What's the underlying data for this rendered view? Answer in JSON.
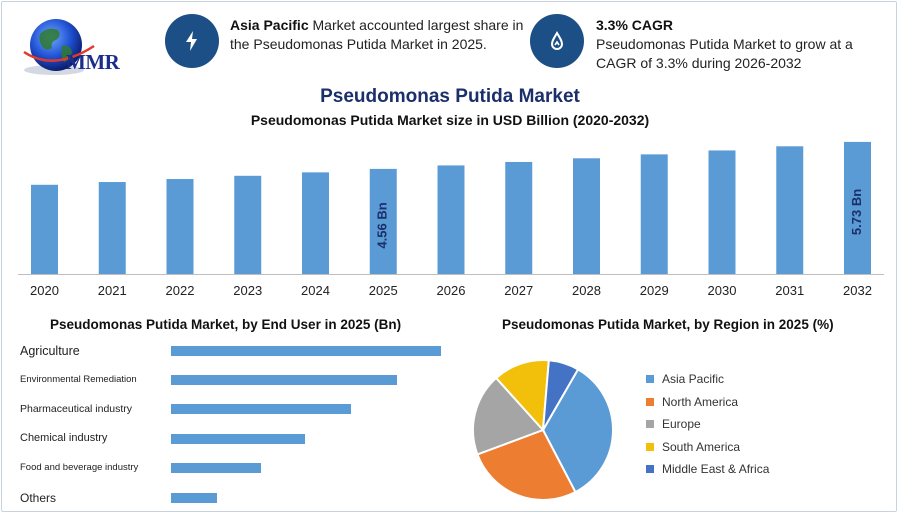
{
  "header": {
    "logo_text": "MMR",
    "info1": {
      "bold": "Asia Pacific",
      "rest": " Market accounted largest share in the Pseudomonas Putida Market in 2025."
    },
    "info2": {
      "title": "3.3% CAGR",
      "text": "Pseudomonas Putida Market to grow at a CAGR of 3.3% during 2026-2032"
    }
  },
  "title": "Pseudomonas Putida Market",
  "colors": {
    "bar": "#5b9bd5",
    "navy": "#1c4f86"
  },
  "chart_data": [
    {
      "type": "bar",
      "title": "Pseudomonas Putida Market size in USD Billion (2020-2032)",
      "categories": [
        "2020",
        "2021",
        "2022",
        "2023",
        "2024",
        "2025",
        "2026",
        "2027",
        "2028",
        "2029",
        "2030",
        "2031",
        "2032"
      ],
      "values": [
        3.87,
        3.99,
        4.12,
        4.26,
        4.41,
        4.56,
        4.71,
        4.86,
        5.02,
        5.19,
        5.36,
        5.54,
        5.73
      ],
      "ylim": [
        0,
        5.9
      ],
      "data_labels": [
        {
          "index": 5,
          "text": "4.56 Bn"
        },
        {
          "index": 12,
          "text": "5.73 Bn"
        }
      ]
    },
    {
      "type": "bar",
      "orientation": "horizontal",
      "title": "Pseudomonas Putida Market, by End User in 2025 (Bn)",
      "categories": [
        "Agriculture",
        "Environmental Remediation",
        "Pharmaceutical industry",
        "Chemical industry",
        "Food and beverage industry",
        "Others"
      ],
      "values": [
        1.35,
        1.13,
        0.9,
        0.67,
        0.45,
        0.23
      ]
    },
    {
      "type": "pie",
      "title": "Pseudomonas Putida Market, by Region in 2025 (%)",
      "categories": [
        "Asia Pacific",
        "North America",
        "Europe",
        "South America",
        "Middle East & Africa"
      ],
      "values": [
        34,
        27,
        19,
        13,
        7
      ],
      "colors": [
        "#5b9bd5",
        "#ed7d31",
        "#a5a5a5",
        "#f2c00a",
        "#4472c4"
      ]
    }
  ]
}
